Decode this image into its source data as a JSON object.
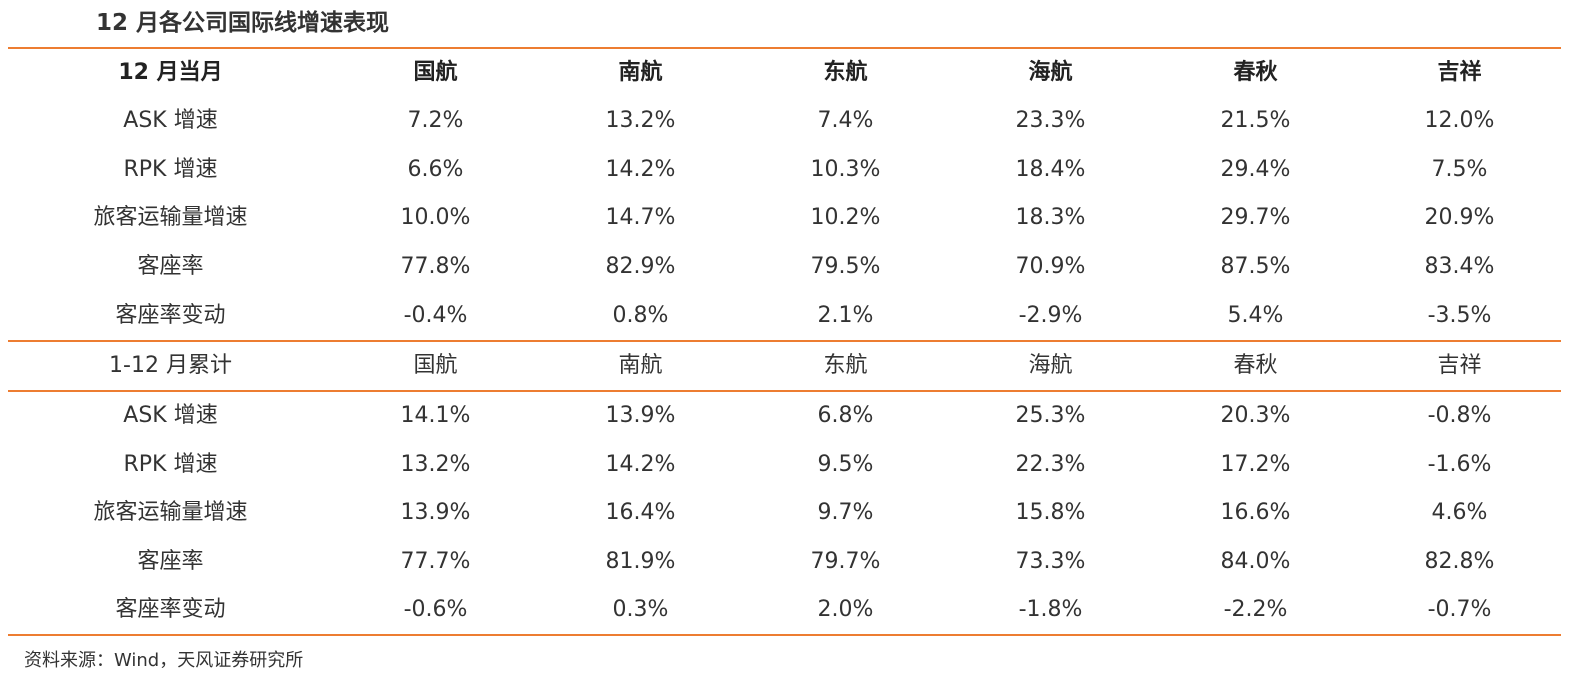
{
  "title": "12 月各公司国际线增速表现",
  "accent_color": "#ED7D31",
  "section1": {
    "header": [
      "12 月当月",
      "国航",
      "南航",
      "东航",
      "海航",
      "春秋",
      "吉祥"
    ],
    "rows": [
      [
        "ASK 增速",
        "7.2%",
        "13.2%",
        "7.4%",
        "23.3%",
        "21.5%",
        "12.0%"
      ],
      [
        "RPK 增速",
        "6.6%",
        "14.2%",
        "10.3%",
        "18.4%",
        "29.4%",
        "7.5%"
      ],
      [
        "旅客运输量增速",
        "10.0%",
        "14.7%",
        "10.2%",
        "18.3%",
        "29.7%",
        "20.9%"
      ],
      [
        "客座率",
        "77.8%",
        "82.9%",
        "79.5%",
        "70.9%",
        "87.5%",
        "83.4%"
      ],
      [
        "客座率变动",
        "-0.4%",
        "0.8%",
        "2.1%",
        "-2.9%",
        "5.4%",
        "-3.5%"
      ]
    ]
  },
  "section2": {
    "header": [
      "1-12 月累计",
      "国航",
      "南航",
      "东航",
      "海航",
      "春秋",
      "吉祥"
    ],
    "rows": [
      [
        "ASK 增速",
        "14.1%",
        "13.9%",
        "6.8%",
        "25.3%",
        "20.3%",
        "-0.8%"
      ],
      [
        "RPK 增速",
        "13.2%",
        "14.2%",
        "9.5%",
        "22.3%",
        "17.2%",
        "-1.6%"
      ],
      [
        "旅客运输量增速",
        "13.9%",
        "16.4%",
        "9.7%",
        "15.8%",
        "16.6%",
        "4.6%"
      ],
      [
        "客座率",
        "77.7%",
        "81.9%",
        "79.7%",
        "73.3%",
        "84.0%",
        "82.8%"
      ],
      [
        "客座率变动",
        "-0.6%",
        "0.3%",
        "2.0%",
        "-1.8%",
        "-2.2%",
        "-0.7%"
      ]
    ]
  },
  "source": "资料来源：Wind，天风证券研究所"
}
